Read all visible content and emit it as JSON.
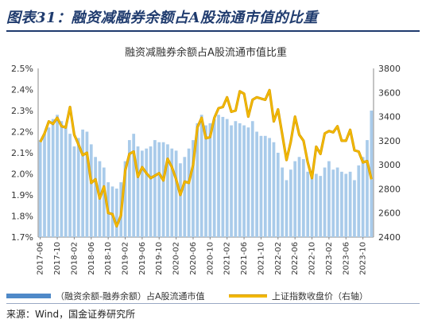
{
  "header": {
    "title": "图表31：融资减融券余额占A股流通市值的比重"
  },
  "footer": {
    "source": "来源：Wind，国金证券研究所"
  },
  "legend": {
    "bar_label": "（融资余额-融券余额）占A股流通市值",
    "line_label": "上证指数收盘价（右轴）"
  },
  "colors": {
    "bar": "#a9cbea",
    "line": "#f2b800",
    "line_edge": "#d59a00",
    "title": "#1f3b6e"
  },
  "chart_data": {
    "type": "bar",
    "title": "融资减融券余额占A股流通市值比重",
    "y_left": {
      "min": 1.7,
      "max": 2.5,
      "ticks": [
        "1.7%",
        "1.8%",
        "1.9%",
        "2.0%",
        "2.1%",
        "2.2%",
        "2.3%",
        "2.4%",
        "2.5%"
      ]
    },
    "y_right": {
      "min": 2400,
      "max": 3800,
      "ticks": [
        "2400",
        "2600",
        "2800",
        "3000",
        "3200",
        "3400",
        "3600",
        "3800"
      ]
    },
    "x_ticks": [
      "2017-06",
      "2017-10",
      "2018-02",
      "2018-06",
      "2018-10",
      "2019-02",
      "2019-06",
      "2019-10",
      "2020-02",
      "2020-06",
      "2020-10",
      "2021-02",
      "2021-06",
      "2021-10",
      "2022-02",
      "2022-06",
      "2022-10",
      "2023-02",
      "2023-06",
      "2023-10"
    ],
    "categories": [
      "2017-06",
      "2017-07",
      "2017-08",
      "2017-09",
      "2017-10",
      "2017-11",
      "2017-12",
      "2018-01",
      "2018-02",
      "2018-03",
      "2018-04",
      "2018-05",
      "2018-06",
      "2018-07",
      "2018-08",
      "2018-09",
      "2018-10",
      "2018-11",
      "2018-12",
      "2019-01",
      "2019-02",
      "2019-03",
      "2019-04",
      "2019-05",
      "2019-06",
      "2019-07",
      "2019-08",
      "2019-09",
      "2019-10",
      "2019-11",
      "2019-12",
      "2020-01",
      "2020-02",
      "2020-03",
      "2020-04",
      "2020-05",
      "2020-06",
      "2020-07",
      "2020-08",
      "2020-09",
      "2020-10",
      "2020-11",
      "2020-12",
      "2021-01",
      "2021-02",
      "2021-03",
      "2021-04",
      "2021-05",
      "2021-06",
      "2021-07",
      "2021-08",
      "2021-09",
      "2021-10",
      "2021-11",
      "2021-12",
      "2022-01",
      "2022-02",
      "2022-03",
      "2022-04",
      "2022-05",
      "2022-06",
      "2022-07",
      "2022-08",
      "2022-09",
      "2022-10",
      "2022-11",
      "2022-12",
      "2023-01",
      "2023-02",
      "2023-03",
      "2023-04",
      "2023-05",
      "2023-06",
      "2023-07",
      "2023-08",
      "2023-09",
      "2023-10",
      "2023-11",
      "2023-12"
    ],
    "series": [
      {
        "name": "（融资余额-融券余额）占A股流通市值",
        "axis": "left",
        "values": [
          2.16,
          2.19,
          2.22,
          2.26,
          2.28,
          2.25,
          2.23,
          2.19,
          2.13,
          2.17,
          2.21,
          2.2,
          2.14,
          2.08,
          2.06,
          2.03,
          1.96,
          1.94,
          1.93,
          1.96,
          2.06,
          2.16,
          2.19,
          2.13,
          2.11,
          2.12,
          2.13,
          2.16,
          2.15,
          2.15,
          2.14,
          2.12,
          2.11,
          2.05,
          2.08,
          2.12,
          2.16,
          2.24,
          2.28,
          2.23,
          2.24,
          2.26,
          2.28,
          2.27,
          2.26,
          2.23,
          2.25,
          2.24,
          2.23,
          2.22,
          2.25,
          2.2,
          2.18,
          2.18,
          2.17,
          2.15,
          2.1,
          2.03,
          1.97,
          2.02,
          2.06,
          2.08,
          2.07,
          2.01,
          2.0,
          2.0,
          1.99,
          2.03,
          2.06,
          2.02,
          2.03,
          2.01,
          2.0,
          2.01,
          1.97,
          2.04,
          2.08,
          2.16,
          2.3
        ]
      },
      {
        "name": "上证指数收盘价（右轴）",
        "axis": "right",
        "values": [
          3190,
          3260,
          3360,
          3340,
          3390,
          3320,
          3310,
          3480,
          3250,
          3170,
          3080,
          3100,
          2850,
          2880,
          2720,
          2820,
          2600,
          2590,
          2490,
          2580,
          2950,
          3090,
          3110,
          2900,
          2980,
          2930,
          2890,
          2910,
          2930,
          2870,
          3050,
          2980,
          2880,
          2750,
          2860,
          2850,
          3000,
          3310,
          3390,
          3220,
          3230,
          3390,
          3470,
          3480,
          3560,
          3440,
          3450,
          3610,
          3590,
          3400,
          3540,
          3560,
          3550,
          3540,
          3620,
          3360,
          3460,
          3250,
          3040,
          3190,
          3400,
          3250,
          3200,
          3020,
          2890,
          3150,
          3090,
          3260,
          3280,
          3270,
          3320,
          3200,
          3200,
          3290,
          3120,
          3110,
          3020,
          3030,
          2880
        ]
      }
    ],
    "xlabel": "",
    "ylabel": "",
    "grid": false,
    "legend_position": "bottom"
  }
}
